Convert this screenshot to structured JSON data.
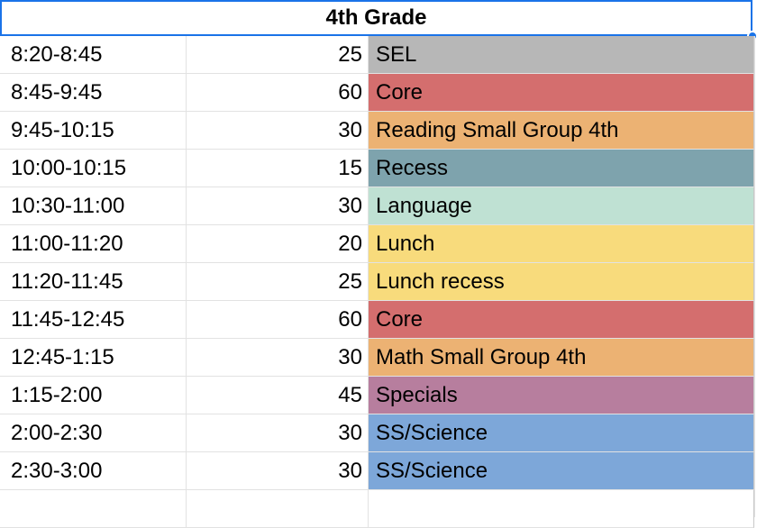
{
  "header": {
    "title": "4th Grade"
  },
  "rows": [
    {
      "time": "8:20-8:45",
      "minutes": "25",
      "activity": "SEL",
      "color": "#b7b7b7"
    },
    {
      "time": "8:45-9:45",
      "minutes": "60",
      "activity": "Core",
      "color": "#d46e6e"
    },
    {
      "time": "9:45-10:15",
      "minutes": "30",
      "activity": "Reading Small Group 4th",
      "color": "#ecb273"
    },
    {
      "time": "10:00-10:15",
      "minutes": "15",
      "activity": "Recess",
      "color": "#7ea3ad"
    },
    {
      "time": "10:30-11:00",
      "minutes": "30",
      "activity": "Language",
      "color": "#bfe1d3"
    },
    {
      "time": "11:00-11:20",
      "minutes": "20",
      "activity": "Lunch",
      "color": "#f8db7c"
    },
    {
      "time": "11:20-11:45",
      "minutes": "25",
      "activity": "Lunch recess",
      "color": "#f8db7c"
    },
    {
      "time": "11:45-12:45",
      "minutes": "60",
      "activity": "Core",
      "color": "#d46e6e"
    },
    {
      "time": "12:45-1:15",
      "minutes": "30",
      "activity": "Math Small Group 4th",
      "color": "#ecb273"
    },
    {
      "time": "1:15-2:00",
      "minutes": "45",
      "activity": "Specials",
      "color": "#b77e9e"
    },
    {
      "time": "2:00-2:30",
      "minutes": "30",
      "activity": "SS/Science",
      "color": "#7da7d9"
    },
    {
      "time": "2:30-3:00",
      "minutes": "30",
      "activity": "SS/Science",
      "color": "#7da7d9"
    }
  ]
}
